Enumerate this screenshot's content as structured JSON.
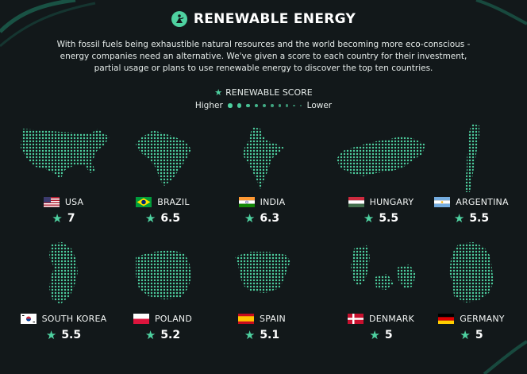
{
  "header": {
    "title": "RENEWABLE ENERGY",
    "logo_icon": "eco-person-icon"
  },
  "intro": "With fossil fuels being exhaustible natural resources and the world becoming more eco-conscious - energy companies need an alternative. We've given a score to each country for their investment, partial usage or plans to use renewable energy to discover the top ten countries.",
  "legend": {
    "title": "RENEWABLE SCORE",
    "higher_label": "Higher",
    "lower_label": "Lower",
    "dot_count": 10
  },
  "colors": {
    "accent": "#4ed1a0",
    "background": "#12181a"
  },
  "countries": [
    {
      "name": "USA",
      "score": "7",
      "flag": "us-flag-icon"
    },
    {
      "name": "BRAZIL",
      "score": "6.5",
      "flag": "brazil-flag-icon"
    },
    {
      "name": "INDIA",
      "score": "6.3",
      "flag": "india-flag-icon"
    },
    {
      "name": "HUNGARY",
      "score": "5.5",
      "flag": "hungary-flag-icon"
    },
    {
      "name": "ARGENTINA",
      "score": "5.5",
      "flag": "argentina-flag-icon"
    },
    {
      "name": "SOUTH KOREA",
      "score": "5.5",
      "flag": "south-korea-flag-icon"
    },
    {
      "name": "POLAND",
      "score": "5.2",
      "flag": "poland-flag-icon"
    },
    {
      "name": "SPAIN",
      "score": "5.1",
      "flag": "spain-flag-icon"
    },
    {
      "name": "DENMARK",
      "score": "5",
      "flag": "denmark-flag-icon"
    },
    {
      "name": "GERMANY",
      "score": "5",
      "flag": "germany-flag-icon"
    }
  ]
}
